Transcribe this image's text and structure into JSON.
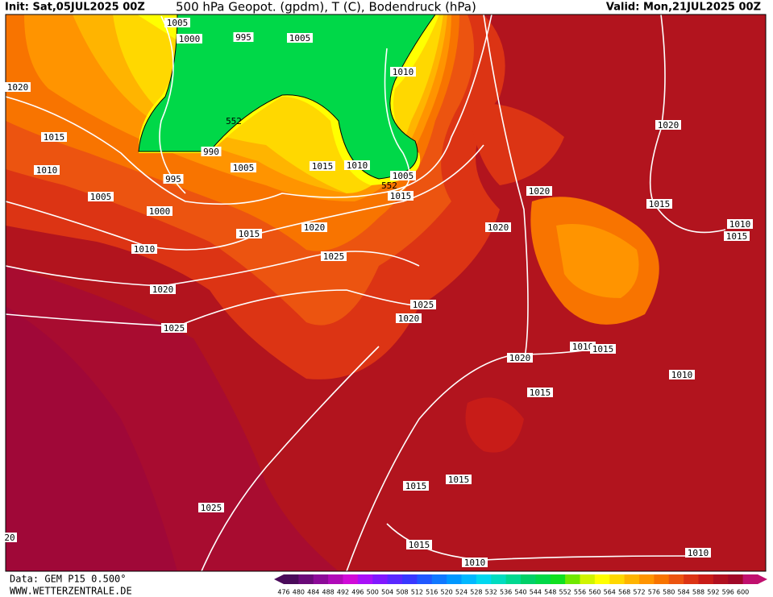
{
  "header": {
    "init": "Init: Sat,05JUL2025 00Z",
    "title": "500 hPa Geopot. (gpdm), T (C), Bodendruck (hPa)",
    "valid": "Valid: Mon,21JUL2025 00Z"
  },
  "isobars": [
    "1005",
    "1000",
    "995",
    "1005",
    "1010",
    "1020",
    "1015",
    "990",
    "1010",
    "1005",
    "995",
    "1015",
    "1010",
    "1005",
    "1005",
    "1015",
    "1020",
    "1020",
    "1000",
    "1015",
    "1020",
    "1020",
    "1010",
    "1015",
    "1015",
    "1010",
    "1025",
    "1020",
    "1025",
    "1020",
    "1025",
    "1010",
    "1015",
    "1020",
    "1010",
    "1015",
    "1015",
    "1015",
    "1025",
    "20",
    "1015",
    "1010",
    "1010",
    "552",
    "552"
  ],
  "legend": {
    "labels": [
      476,
      480,
      484,
      488,
      492,
      496,
      500,
      504,
      508,
      512,
      516,
      520,
      524,
      528,
      532,
      536,
      540,
      544,
      548,
      552,
      556,
      560,
      564,
      568,
      572,
      576,
      580,
      584,
      588,
      592,
      596,
      600
    ],
    "colors": [
      "#4a0a5a",
      "#6a0a78",
      "#8c0a98",
      "#b00ab8",
      "#d00ad8",
      "#a810f8",
      "#8018ff",
      "#5a28ff",
      "#3838ff",
      "#2058ff",
      "#1078ff",
      "#0098ff",
      "#00b8ff",
      "#00d8f0",
      "#00dcc0",
      "#00d890",
      "#00d068",
      "#00d848",
      "#10e020",
      "#70e800",
      "#d0f400",
      "#ffff00",
      "#ffd800",
      "#ffb400",
      "#ff9400",
      "#f87400",
      "#ec5410",
      "#dc3414",
      "#c81c18",
      "#b01020",
      "#a00828",
      "#c0106e"
    ]
  },
  "footer": {
    "source": "Data: GEM P15 0.500°",
    "site": "WWW.WETTERZENTRALE.DE"
  }
}
